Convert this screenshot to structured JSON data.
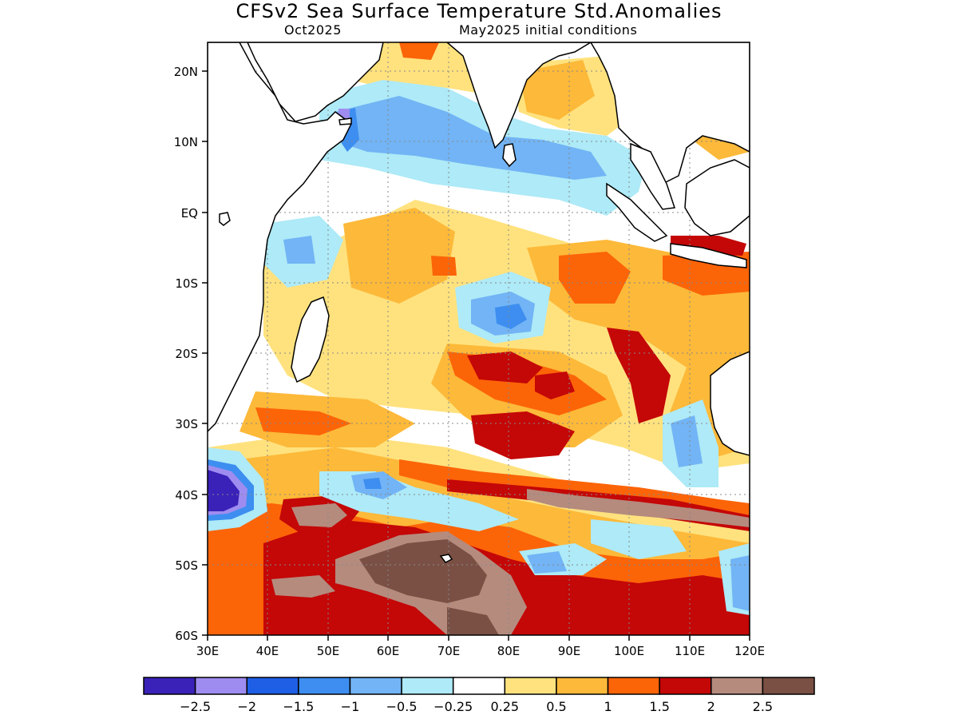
{
  "title": "CFSv2 Sea Surface Temperature Std.Anomalies",
  "subtitle_left": "Oct2025",
  "subtitle_right": "May2025 initial conditions",
  "lat_labels": [
    "20N",
    "10N",
    "EQ",
    "10S",
    "20S",
    "30S",
    "40S",
    "50S",
    "60S"
  ],
  "lon_labels": [
    "30E",
    "40E",
    "50E",
    "60E",
    "70E",
    "80E",
    "90E",
    "100E",
    "110E",
    "120E"
  ],
  "colorbar": {
    "colors": [
      "#3a22b8",
      "#9f8cf0",
      "#1f5fe6",
      "#3d8ef0",
      "#72b4f5",
      "#aeeaf7",
      "#ffffff",
      "#ffe27e",
      "#fdb939",
      "#fc6408",
      "#c40707",
      "#b58b7e",
      "#7a5044"
    ],
    "labels": [
      "−2.5",
      "−2",
      "−1.5",
      "−1",
      "−0.5",
      "−0.25",
      "0.25",
      "0.5",
      "1",
      "1.5",
      "2",
      "2.5"
    ]
  },
  "chart_data": {
    "type": "heatmap",
    "variable": "Sea Surface Temperature Std.Anomalies",
    "lon_range": [
      30,
      120
    ],
    "lat_range": [
      -60,
      24
    ],
    "levels": [
      -2.5,
      -2,
      -1.5,
      -1,
      -0.5,
      -0.25,
      0.25,
      0.5,
      1,
      1.5,
      2,
      2.5
    ]
  }
}
